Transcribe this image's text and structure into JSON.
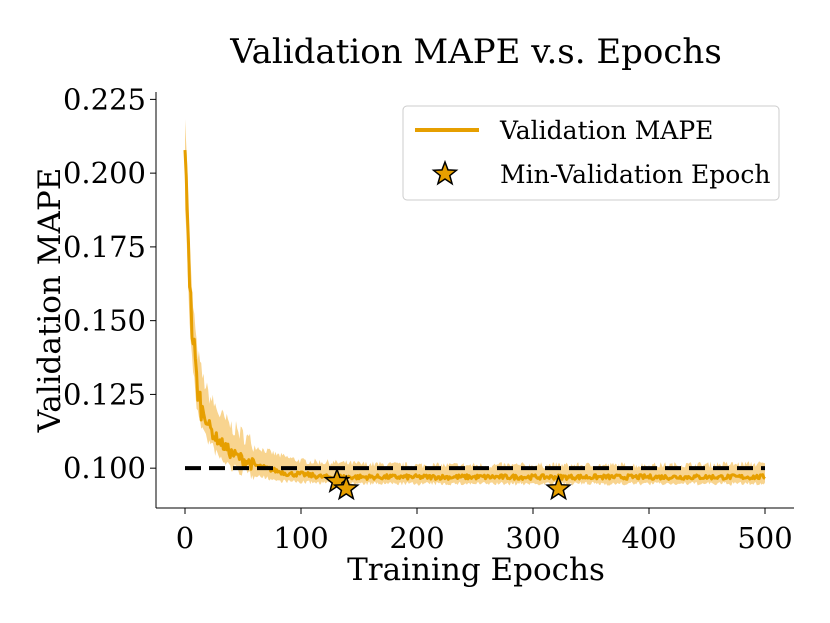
{
  "chart_data": {
    "type": "line",
    "title": "Validation MAPE v.s. Epochs",
    "xlabel": "Training Epochs",
    "ylabel": "Validation MAPE",
    "xlim": [
      -25,
      525
    ],
    "ylim": [
      0.0865,
      0.2275
    ],
    "xticks": [
      0,
      100,
      200,
      300,
      400,
      500
    ],
    "xtick_labels": [
      "0",
      "100",
      "200",
      "300",
      "400",
      "500"
    ],
    "yticks": [
      0.1,
      0.125,
      0.15,
      0.175,
      0.2,
      0.225
    ],
    "ytick_labels": [
      "0.100",
      "0.125",
      "0.150",
      "0.175",
      "0.200",
      "0.225"
    ],
    "grid": false,
    "legend_position": "top-right",
    "colors": {
      "series": "#E69F00",
      "band": "#F5C56A",
      "threshold": "#000000",
      "marker_fill": "#E69F00",
      "marker_edge": "#000000"
    },
    "series": [
      {
        "name": "Validation MAPE",
        "kind": "line-with-band",
        "curve": {
          "x": [
            0,
            2,
            4,
            6,
            8,
            10,
            12,
            15,
            18,
            20,
            25,
            30,
            35,
            40,
            50,
            60,
            70,
            80,
            90,
            100,
            110,
            120,
            130,
            140,
            150,
            170,
            200,
            250,
            300,
            350,
            400,
            450,
            500
          ],
          "y": [
            0.204,
            0.19,
            0.165,
            0.147,
            0.14,
            0.13,
            0.124,
            0.12,
            0.117,
            0.115,
            0.111,
            0.109,
            0.107,
            0.105,
            0.103,
            0.101,
            0.1,
            0.099,
            0.098,
            0.098,
            0.0975,
            0.097,
            0.097,
            0.097,
            0.097,
            0.097,
            0.097,
            0.097,
            0.097,
            0.097,
            0.097,
            0.097,
            0.097
          ]
        },
        "band_upper": {
          "x": [
            0,
            2,
            4,
            6,
            8,
            10,
            15,
            20,
            30,
            40,
            60,
            80,
            100,
            150,
            200,
            300,
            400,
            500
          ],
          "y": [
            0.22,
            0.2,
            0.175,
            0.158,
            0.15,
            0.14,
            0.13,
            0.124,
            0.117,
            0.113,
            0.107,
            0.104,
            0.102,
            0.101,
            0.1005,
            0.1005,
            0.1005,
            0.101
          ]
        },
        "band_lower": {
          "x": [
            0,
            2,
            4,
            6,
            8,
            10,
            15,
            20,
            30,
            40,
            60,
            80,
            100,
            150,
            200,
            300,
            400,
            500
          ],
          "y": [
            0.19,
            0.172,
            0.15,
            0.138,
            0.13,
            0.122,
            0.114,
            0.11,
            0.104,
            0.101,
            0.098,
            0.096,
            0.0955,
            0.095,
            0.095,
            0.095,
            0.095,
            0.095
          ]
        }
      },
      {
        "name": "Min-Validation Epoch",
        "kind": "markers",
        "marker": "star",
        "x": [
          131,
          139,
          322
        ],
        "y": [
          0.0955,
          0.093,
          0.093
        ]
      },
      {
        "name": "threshold",
        "kind": "dashed-line",
        "x": [
          0,
          500
        ],
        "y": [
          0.1,
          0.1
        ]
      }
    ],
    "legend": [
      {
        "label": "Validation MAPE",
        "symbol": "line"
      },
      {
        "label": "Min-Validation Epoch",
        "symbol": "star"
      }
    ]
  }
}
